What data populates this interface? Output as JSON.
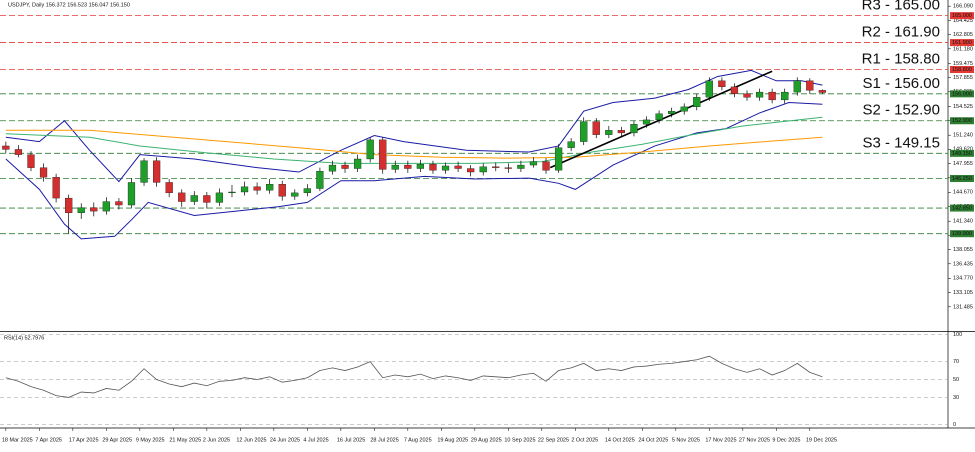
{
  "chart_data": [
    {
      "type": "candlestick",
      "title": "USDJPY, Daily 156.372 156.523 156.047 156.150",
      "up_color": "#1f9e2a",
      "down_color": "#d32f2f",
      "xlim": [
        -1.4,
        225
      ],
      "ylim": [
        128.7,
        166.8
      ],
      "yticks": [
        {
          "value": 166.09,
          "label": "166.090"
        },
        {
          "value": 164.425,
          "label": "164.425"
        },
        {
          "value": 162.805,
          "label": "162.805"
        },
        {
          "value": 161.18,
          "label": "161.180"
        },
        {
          "value": 159.475,
          "label": "159.475"
        },
        {
          "value": 157.855,
          "label": "157.855"
        },
        {
          "value": 156.235,
          "label": "156.235"
        },
        {
          "value": 154.525,
          "label": "154.525"
        },
        {
          "value": 152.905,
          "label": "152.905"
        },
        {
          "value": 151.24,
          "label": "151.240"
        },
        {
          "value": 149.62,
          "label": "149.620"
        },
        {
          "value": 147.955,
          "label": "147.955"
        },
        {
          "value": 146.335,
          "label": "146.335"
        },
        {
          "value": 144.67,
          "label": "144.670"
        },
        {
          "value": 143.05,
          "label": "143.050"
        },
        {
          "value": 141.34,
          "label": "141.340"
        },
        {
          "value": 139.72,
          "label": "139.720"
        },
        {
          "value": 138.055,
          "label": "138.055"
        },
        {
          "value": 136.435,
          "label": "136.435"
        },
        {
          "value": 134.77,
          "label": "134.770"
        },
        {
          "value": 133.105,
          "label": "133.105"
        },
        {
          "value": 131.485,
          "label": "131.485"
        }
      ],
      "x": [
        0,
        3,
        6,
        9,
        12,
        15,
        18,
        21,
        24,
        27,
        30,
        33,
        36,
        39,
        42,
        45,
        48,
        51,
        54,
        57,
        60,
        63,
        66,
        69,
        72,
        75,
        78,
        81,
        84,
        87,
        90,
        93,
        96,
        99,
        102,
        105,
        108,
        111,
        114,
        117,
        120,
        123,
        126,
        129,
        132,
        135,
        138,
        141,
        144,
        147,
        150,
        153,
        156,
        159,
        162,
        165,
        168,
        171,
        174,
        177,
        180,
        183,
        186,
        189,
        192,
        195
      ],
      "open": [
        150.0,
        149.6,
        149.0,
        147.5,
        146.4,
        144.0,
        142.3,
        142.9,
        142.5,
        143.6,
        143.2,
        145.8,
        148.3,
        145.8,
        144.6,
        143.6,
        144.3,
        143.5,
        144.6,
        144.7,
        145.3,
        144.9,
        145.6,
        144.2,
        144.6,
        145.1,
        147.1,
        147.8,
        147.4,
        148.5,
        150.7,
        147.3,
        147.8,
        147.4,
        147.9,
        147.2,
        147.7,
        147.4,
        147.0,
        147.6,
        147.5,
        147.4,
        147.8,
        148.2,
        147.2,
        149.8,
        150.5,
        152.8,
        151.3,
        151.8,
        151.5,
        152.5,
        153.0,
        153.7,
        154.0,
        154.5,
        155.6,
        157.5,
        156.8,
        156.0,
        155.6,
        156.2,
        155.3,
        156.2,
        157.5,
        156.4
      ],
      "high": [
        150.5,
        150.1,
        149.4,
        148.0,
        146.8,
        144.4,
        143.4,
        143.5,
        144.1,
        144.0,
        146.3,
        148.6,
        148.7,
        146.2,
        145.0,
        144.8,
        144.7,
        145.1,
        145.5,
        145.9,
        145.8,
        146.2,
        146.0,
        145.0,
        145.6,
        147.5,
        148.3,
        148.2,
        149.0,
        151.0,
        151.0,
        148.3,
        148.3,
        148.4,
        148.3,
        148.1,
        148.2,
        147.8,
        148.0,
        148.1,
        148.0,
        148.3,
        148.7,
        148.6,
        150.2,
        150.9,
        153.3,
        153.2,
        152.3,
        152.2,
        152.9,
        153.4,
        154.1,
        154.4,
        154.9,
        156.0,
        157.9,
        157.9,
        157.2,
        156.4,
        156.6,
        156.6,
        156.6,
        157.9,
        157.8,
        156.5
      ],
      "low": [
        149.2,
        148.7,
        147.1,
        145.9,
        143.5,
        139.9,
        141.6,
        141.9,
        142.1,
        142.7,
        142.9,
        145.4,
        145.3,
        144.1,
        143.0,
        143.2,
        142.8,
        143.1,
        144.1,
        144.3,
        144.4,
        144.5,
        143.7,
        143.8,
        144.2,
        144.8,
        146.7,
        146.9,
        147.0,
        148.1,
        146.8,
        146.9,
        146.9,
        147.0,
        146.8,
        146.8,
        147.0,
        146.5,
        146.6,
        147.1,
        146.9,
        147.0,
        147.5,
        146.8,
        146.9,
        149.4,
        150.1,
        150.9,
        150.9,
        151.0,
        151.1,
        152.1,
        152.6,
        153.3,
        153.6,
        154.1,
        155.2,
        156.4,
        155.6,
        155.2,
        155.2,
        154.9,
        154.9,
        155.8,
        156.0,
        156.0
      ],
      "close": [
        149.6,
        149.0,
        147.5,
        146.4,
        144.0,
        142.3,
        142.9,
        142.5,
        143.6,
        143.2,
        145.8,
        148.3,
        145.8,
        144.6,
        143.6,
        144.3,
        143.5,
        144.6,
        144.7,
        145.3,
        144.9,
        145.6,
        144.2,
        144.6,
        145.1,
        147.1,
        147.8,
        147.4,
        148.5,
        150.7,
        147.3,
        147.8,
        147.4,
        147.9,
        147.2,
        147.7,
        147.4,
        147.0,
        147.6,
        147.5,
        147.4,
        147.8,
        148.2,
        147.2,
        149.8,
        150.5,
        152.8,
        151.3,
        151.8,
        151.5,
        152.5,
        153.0,
        153.7,
        154.0,
        154.5,
        155.6,
        157.5,
        156.8,
        156.0,
        155.6,
        156.2,
        155.3,
        156.2,
        157.5,
        156.4,
        156.15
      ],
      "lines": [
        {
          "color": "#1a1aa6",
          "x": [
            0,
            8,
            14,
            20,
            27,
            32,
            45,
            60,
            70,
            80,
            88,
            95,
            110,
            125,
            132,
            138,
            145,
            155,
            163,
            170,
            178,
            184,
            190,
            195
          ],
          "values": [
            151.0,
            150.5,
            152.9,
            149.5,
            145.9,
            149.0,
            148.5,
            147.5,
            147.0,
            149.5,
            151.2,
            150.5,
            149.5,
            149.3,
            150.0,
            154.0,
            155.0,
            155.5,
            156.5,
            158.0,
            158.7,
            157.5,
            157.5,
            157.0
          ]
        },
        {
          "color": "#1a1aa6",
          "x": [
            0,
            8,
            14,
            18,
            26,
            30,
            34,
            45,
            55,
            65,
            72,
            80,
            88,
            100,
            112,
            125,
            132,
            136,
            145,
            155,
            165,
            172,
            180,
            187,
            195
          ],
          "values": [
            148.5,
            145.0,
            141.0,
            139.3,
            139.6,
            141.5,
            143.5,
            142.0,
            142.5,
            143.0,
            143.5,
            146.0,
            146.0,
            146.5,
            146.2,
            146.3,
            145.7,
            145.0,
            147.8,
            150.0,
            151.5,
            152.0,
            153.8,
            155.0,
            154.8
          ]
        },
        {
          "color": "#3cb371",
          "x": [
            0,
            20,
            32,
            48,
            64,
            80,
            96,
            112,
            128,
            140,
            152,
            164,
            176,
            195
          ],
          "values": [
            151.4,
            151.0,
            150.0,
            149.2,
            148.5,
            148.0,
            148.0,
            148.0,
            148.2,
            149.3,
            150.2,
            151.3,
            152.3,
            153.3
          ]
        },
        {
          "color": "#ff9900",
          "x": [
            0,
            20,
            40,
            60,
            72,
            88,
            104,
            120,
            136,
            152,
            168,
            184,
            195
          ],
          "values": [
            151.8,
            151.8,
            151.0,
            150.2,
            149.7,
            149.0,
            148.7,
            148.6,
            148.7,
            149.3,
            150.0,
            150.6,
            151.0
          ]
        },
        {
          "color": "#000000",
          "x": [
            130,
            183
          ],
          "values": [
            147.5,
            158.6
          ]
        }
      ],
      "levels": [
        {
          "value": 165.0,
          "label": "R3 - 165.00",
          "axis_label": "165.000",
          "color": "#e53935"
        },
        {
          "value": 161.9,
          "label": "R2 - 161.90",
          "axis_label": "161.900",
          "color": "#e53935"
        },
        {
          "value": 158.8,
          "label": "R1 - 158.80",
          "axis_label": "158.800",
          "color": "#e53935"
        },
        {
          "value": 156.0,
          "label": "S1 - 156.00",
          "axis_label": "156.000",
          "color": "#2e7d32"
        },
        {
          "value": 152.9,
          "label": "S2 - 152.90",
          "axis_label": "152.900",
          "color": "#2e7d32"
        },
        {
          "value": 149.15,
          "label": "S3 - 149.15",
          "axis_label": "149.150",
          "color": "#2e7d32"
        },
        {
          "value": 146.25,
          "axis_label": "146.250",
          "color": "#2e7d32"
        },
        {
          "value": 142.85,
          "axis_label": "142.850",
          "color": "#2e7d32"
        },
        {
          "value": 139.9,
          "axis_label": "139.900",
          "color": "#2e7d32"
        }
      ]
    },
    {
      "type": "line",
      "title": "RSI(14) 52.7976",
      "color": "#555555",
      "xlim": [
        -1.4,
        225
      ],
      "ylim": [
        -3,
        103
      ],
      "yticks": [
        0,
        30,
        50,
        70,
        100
      ],
      "xticks": [
        {
          "value": 0,
          "label": "18 Mar 2025"
        },
        {
          "value": 8,
          "label": "7 Apr 2025"
        },
        {
          "value": 16,
          "label": "17 Apr 2025"
        },
        {
          "value": 24,
          "label": "29 Apr 2025"
        },
        {
          "value": 32,
          "label": "9 May 2025"
        },
        {
          "value": 40,
          "label": "21 May 2025"
        },
        {
          "value": 48,
          "label": "2 Jun 2025"
        },
        {
          "value": 56,
          "label": "12 Jun 2025"
        },
        {
          "value": 64,
          "label": "24 Jun 2025"
        },
        {
          "value": 72,
          "label": "4 Jul 2025"
        },
        {
          "value": 80,
          "label": "16 Jul 2025"
        },
        {
          "value": 88,
          "label": "28 Jul 2025"
        },
        {
          "value": 96,
          "label": "7 Aug 2025"
        },
        {
          "value": 104,
          "label": "19 Aug 2025"
        },
        {
          "value": 112,
          "label": "29 Aug 2025"
        },
        {
          "value": 120,
          "label": "10 Sep 2025"
        },
        {
          "value": 128,
          "label": "22 Sep 2025"
        },
        {
          "value": 136,
          "label": "2 Oct 2025"
        },
        {
          "value": 144,
          "label": "14 Oct 2025"
        },
        {
          "value": 152,
          "label": "24 Oct 2025"
        },
        {
          "value": 160,
          "label": "5 Nov 2025"
        },
        {
          "value": 168,
          "label": "17 Nov 2025"
        },
        {
          "value": 176,
          "label": "27 Nov 2025"
        },
        {
          "value": 184,
          "label": "9 Dec 2025"
        },
        {
          "value": 192,
          "label": "19 Dec 2025"
        }
      ],
      "x": [
        0,
        3,
        6,
        9,
        12,
        15,
        18,
        21,
        24,
        27,
        30,
        33,
        36,
        39,
        42,
        45,
        48,
        51,
        54,
        57,
        60,
        63,
        66,
        69,
        72,
        75,
        78,
        81,
        84,
        87,
        90,
        93,
        96,
        99,
        102,
        105,
        108,
        111,
        114,
        117,
        120,
        123,
        126,
        129,
        132,
        135,
        138,
        141,
        144,
        147,
        150,
        153,
        156,
        159,
        162,
        165,
        168,
        171,
        174,
        177,
        180,
        183,
        186,
        189,
        192,
        195
      ],
      "values": [
        52,
        48,
        42,
        38,
        32,
        30,
        36,
        35,
        40,
        38,
        48,
        62,
        50,
        45,
        42,
        46,
        43,
        48,
        49,
        52,
        50,
        53,
        47,
        49,
        52,
        60,
        63,
        60,
        64,
        70,
        52,
        55,
        53,
        56,
        51,
        54,
        52,
        49,
        54,
        53,
        52,
        55,
        57,
        48,
        60,
        63,
        68,
        60,
        62,
        60,
        64,
        65,
        67,
        68,
        70,
        72,
        76,
        68,
        62,
        58,
        62,
        55,
        60,
        68,
        58,
        53
      ]
    }
  ]
}
